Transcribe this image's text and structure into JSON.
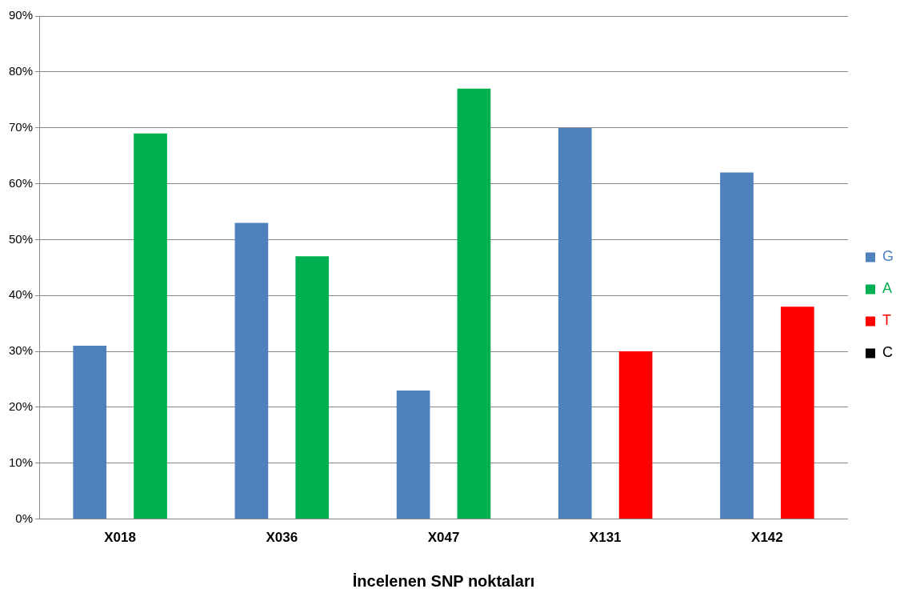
{
  "chart_data": {
    "type": "bar",
    "xlabel": "İncelenen SNP noktaları",
    "categories": [
      "X018",
      "X036",
      "X047",
      "X131",
      "X142"
    ],
    "series": [
      {
        "name": "G",
        "color": "#4f81bd",
        "values": [
          31,
          53,
          23,
          70,
          62
        ]
      },
      {
        "name": "A",
        "color": "#00b050",
        "values": [
          69,
          47,
          77,
          null,
          null
        ]
      },
      {
        "name": "T",
        "color": "#ff0000",
        "values": [
          null,
          null,
          null,
          30,
          38
        ]
      },
      {
        "name": "C",
        "color": "#000000",
        "values": [
          null,
          null,
          null,
          null,
          null
        ]
      }
    ],
    "ylim": [
      0,
      90
    ],
    "yticks": [
      {
        "value": 0,
        "label": "0%"
      },
      {
        "value": 10,
        "label": "10%"
      },
      {
        "value": 20,
        "label": "20%"
      },
      {
        "value": 30,
        "label": "30%"
      },
      {
        "value": 40,
        "label": "40%"
      },
      {
        "value": 50,
        "label": "50%"
      },
      {
        "value": 60,
        "label": "60%"
      },
      {
        "value": 70,
        "label": "70%"
      },
      {
        "value": 80,
        "label": "80%"
      },
      {
        "value": 90,
        "label": "90%"
      }
    ],
    "grid": "y",
    "legend": "right"
  }
}
